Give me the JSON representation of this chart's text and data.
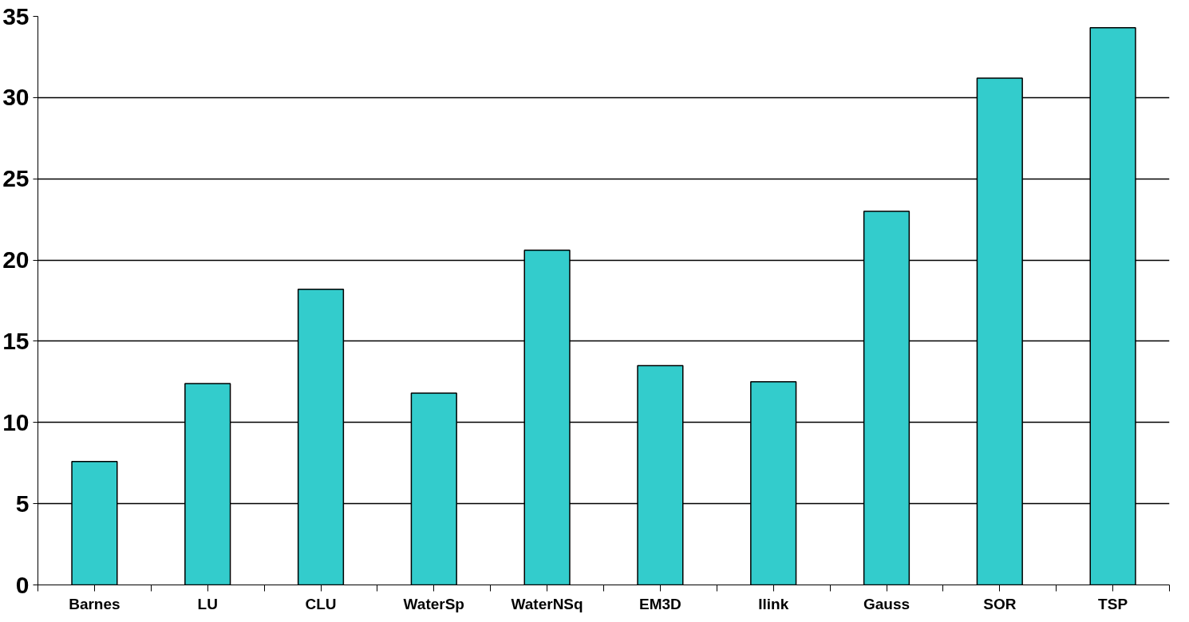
{
  "chart_data": {
    "type": "bar",
    "categories": [
      "Barnes",
      "LU",
      "CLU",
      "WaterSp",
      "WaterNSq",
      "EM3D",
      "Ilink",
      "Gauss",
      "SOR",
      "TSP"
    ],
    "values": [
      7.6,
      12.4,
      18.2,
      11.8,
      20.6,
      13.5,
      12.5,
      23.0,
      31.2,
      34.3
    ],
    "color": "#33cccc",
    "ylim": [
      0,
      35
    ],
    "yticks": [
      0,
      5,
      10,
      15,
      20,
      25,
      30,
      35
    ],
    "grid": "y"
  }
}
